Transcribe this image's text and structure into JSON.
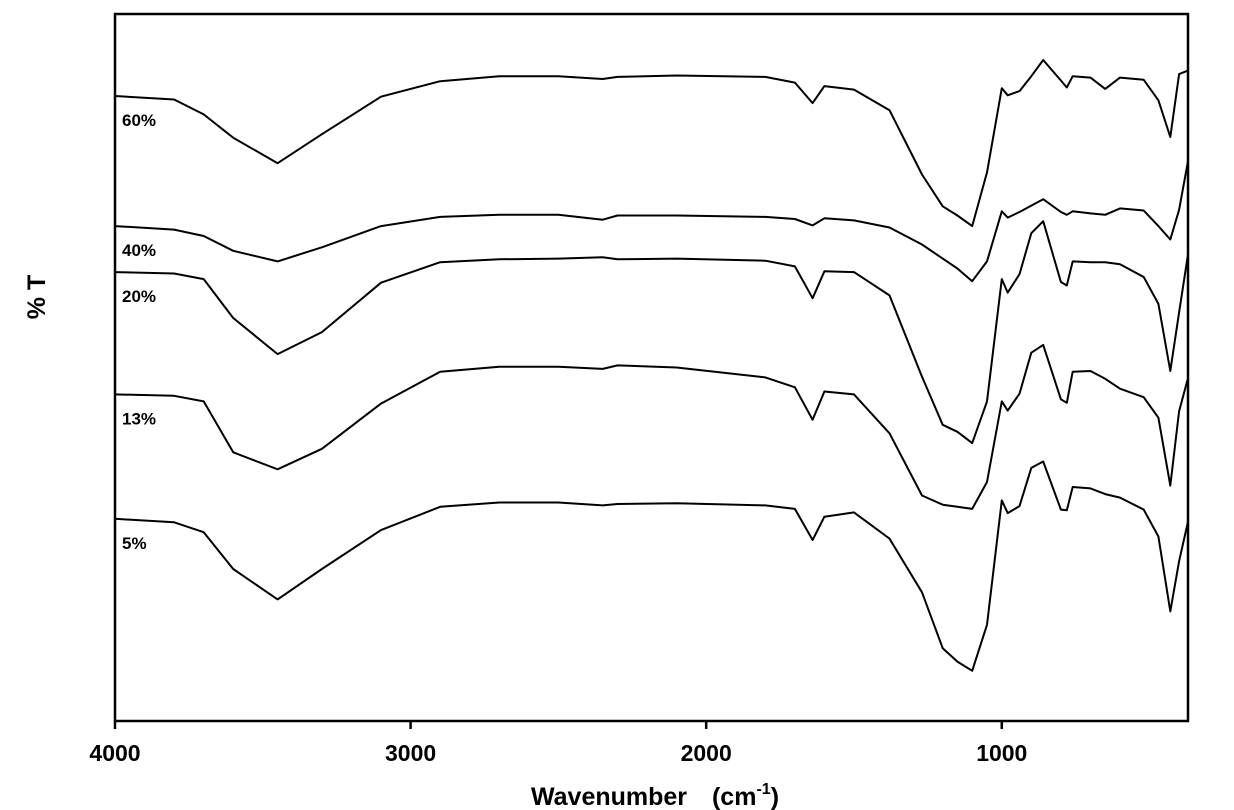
{
  "chart_data": {
    "type": "line",
    "title": "",
    "xlabel": "Wavenumber",
    "xlabel_unit": "(cm",
    "xlabel_unit_sup": "-1",
    "xlabel_unit_close": ")",
    "ylabel": "% T",
    "xlim": [
      4000,
      370
    ],
    "x_reversed": true,
    "x_ticks": [
      4000,
      3000,
      2000,
      1000
    ],
    "x_tick_labels": [
      "4000",
      "3000",
      "2000",
      "1000"
    ],
    "y_ticks_shown": false,
    "grid": false,
    "legend": "inline labels at left of each trace",
    "ylim": [
      0,
      100
    ],
    "line_color": "#000000",
    "x": [
      4000,
      3800,
      3700,
      3600,
      3450,
      3300,
      3100,
      2900,
      2700,
      2500,
      2350,
      2300,
      2100,
      1800,
      1700,
      1640,
      1600,
      1500,
      1380,
      1270,
      1200,
      1150,
      1100,
      1050,
      1000,
      980,
      940,
      900,
      860,
      800,
      780,
      760,
      700,
      650,
      600,
      520,
      470,
      430,
      400,
      370
    ],
    "series": [
      {
        "name": "60%",
        "values": [
          88.4,
          87.9,
          85.8,
          82.5,
          78.9,
          83.0,
          88.3,
          90.5,
          91.2,
          91.2,
          90.8,
          91.1,
          91.3,
          91.1,
          90.3,
          87.4,
          89.8,
          89.3,
          86.4,
          77.3,
          72.8,
          71.5,
          70.0,
          77.6,
          89.5,
          88.5,
          89.1,
          91.2,
          93.5,
          90.6,
          89.6,
          91.2,
          91.0,
          89.4,
          91.0,
          90.7,
          87.8,
          82.6,
          91.5,
          92.0
        ]
      },
      {
        "name": "40%",
        "values": [
          70.0,
          69.5,
          68.6,
          66.5,
          65.0,
          67.0,
          70.0,
          71.3,
          71.6,
          71.6,
          70.9,
          71.5,
          71.5,
          71.3,
          71.0,
          70.1,
          71.1,
          70.8,
          69.8,
          67.4,
          65.4,
          64.0,
          62.2,
          65.0,
          72.1,
          71.2,
          72.0,
          72.9,
          73.8,
          72.0,
          71.6,
          72.1,
          71.8,
          71.6,
          72.5,
          72.2,
          70.0,
          68.1,
          72.3,
          79.2
        ]
      },
      {
        "name": "20%",
        "values": [
          63.5,
          63.3,
          62.5,
          57.0,
          51.9,
          55.0,
          62.0,
          64.9,
          65.3,
          65.4,
          65.6,
          65.3,
          65.4,
          65.1,
          64.3,
          59.8,
          63.6,
          63.5,
          60.2,
          48.7,
          41.9,
          40.9,
          39.3,
          45.2,
          62.5,
          60.6,
          63.2,
          69.0,
          70.7,
          62.1,
          61.6,
          65.0,
          64.9,
          64.9,
          64.6,
          62.8,
          59.0,
          49.5,
          57.8,
          66.0
        ]
      },
      {
        "name": "13%",
        "values": [
          46.2,
          46.0,
          45.2,
          38.0,
          35.6,
          38.5,
          44.9,
          49.4,
          50.1,
          50.1,
          49.8,
          50.3,
          50.0,
          48.6,
          47.2,
          42.6,
          46.6,
          46.2,
          40.7,
          31.9,
          30.6,
          30.3,
          30.0,
          33.8,
          45.2,
          43.9,
          46.3,
          52.1,
          53.2,
          45.5,
          45.0,
          49.4,
          49.5,
          48.4,
          47.0,
          45.8,
          42.9,
          33.3,
          43.8,
          48.5
        ]
      },
      {
        "name": "5%",
        "values": [
          28.6,
          28.1,
          26.7,
          21.5,
          17.2,
          21.5,
          27.0,
          30.3,
          30.9,
          30.9,
          30.5,
          30.7,
          30.8,
          30.5,
          30.0,
          25.6,
          28.9,
          29.5,
          25.8,
          18.2,
          10.3,
          8.4,
          7.1,
          13.6,
          31.2,
          29.4,
          30.4,
          35.8,
          36.7,
          29.9,
          29.8,
          33.1,
          32.9,
          32.1,
          31.6,
          29.9,
          26.1,
          15.5,
          22.6,
          28.2
        ]
      }
    ]
  }
}
